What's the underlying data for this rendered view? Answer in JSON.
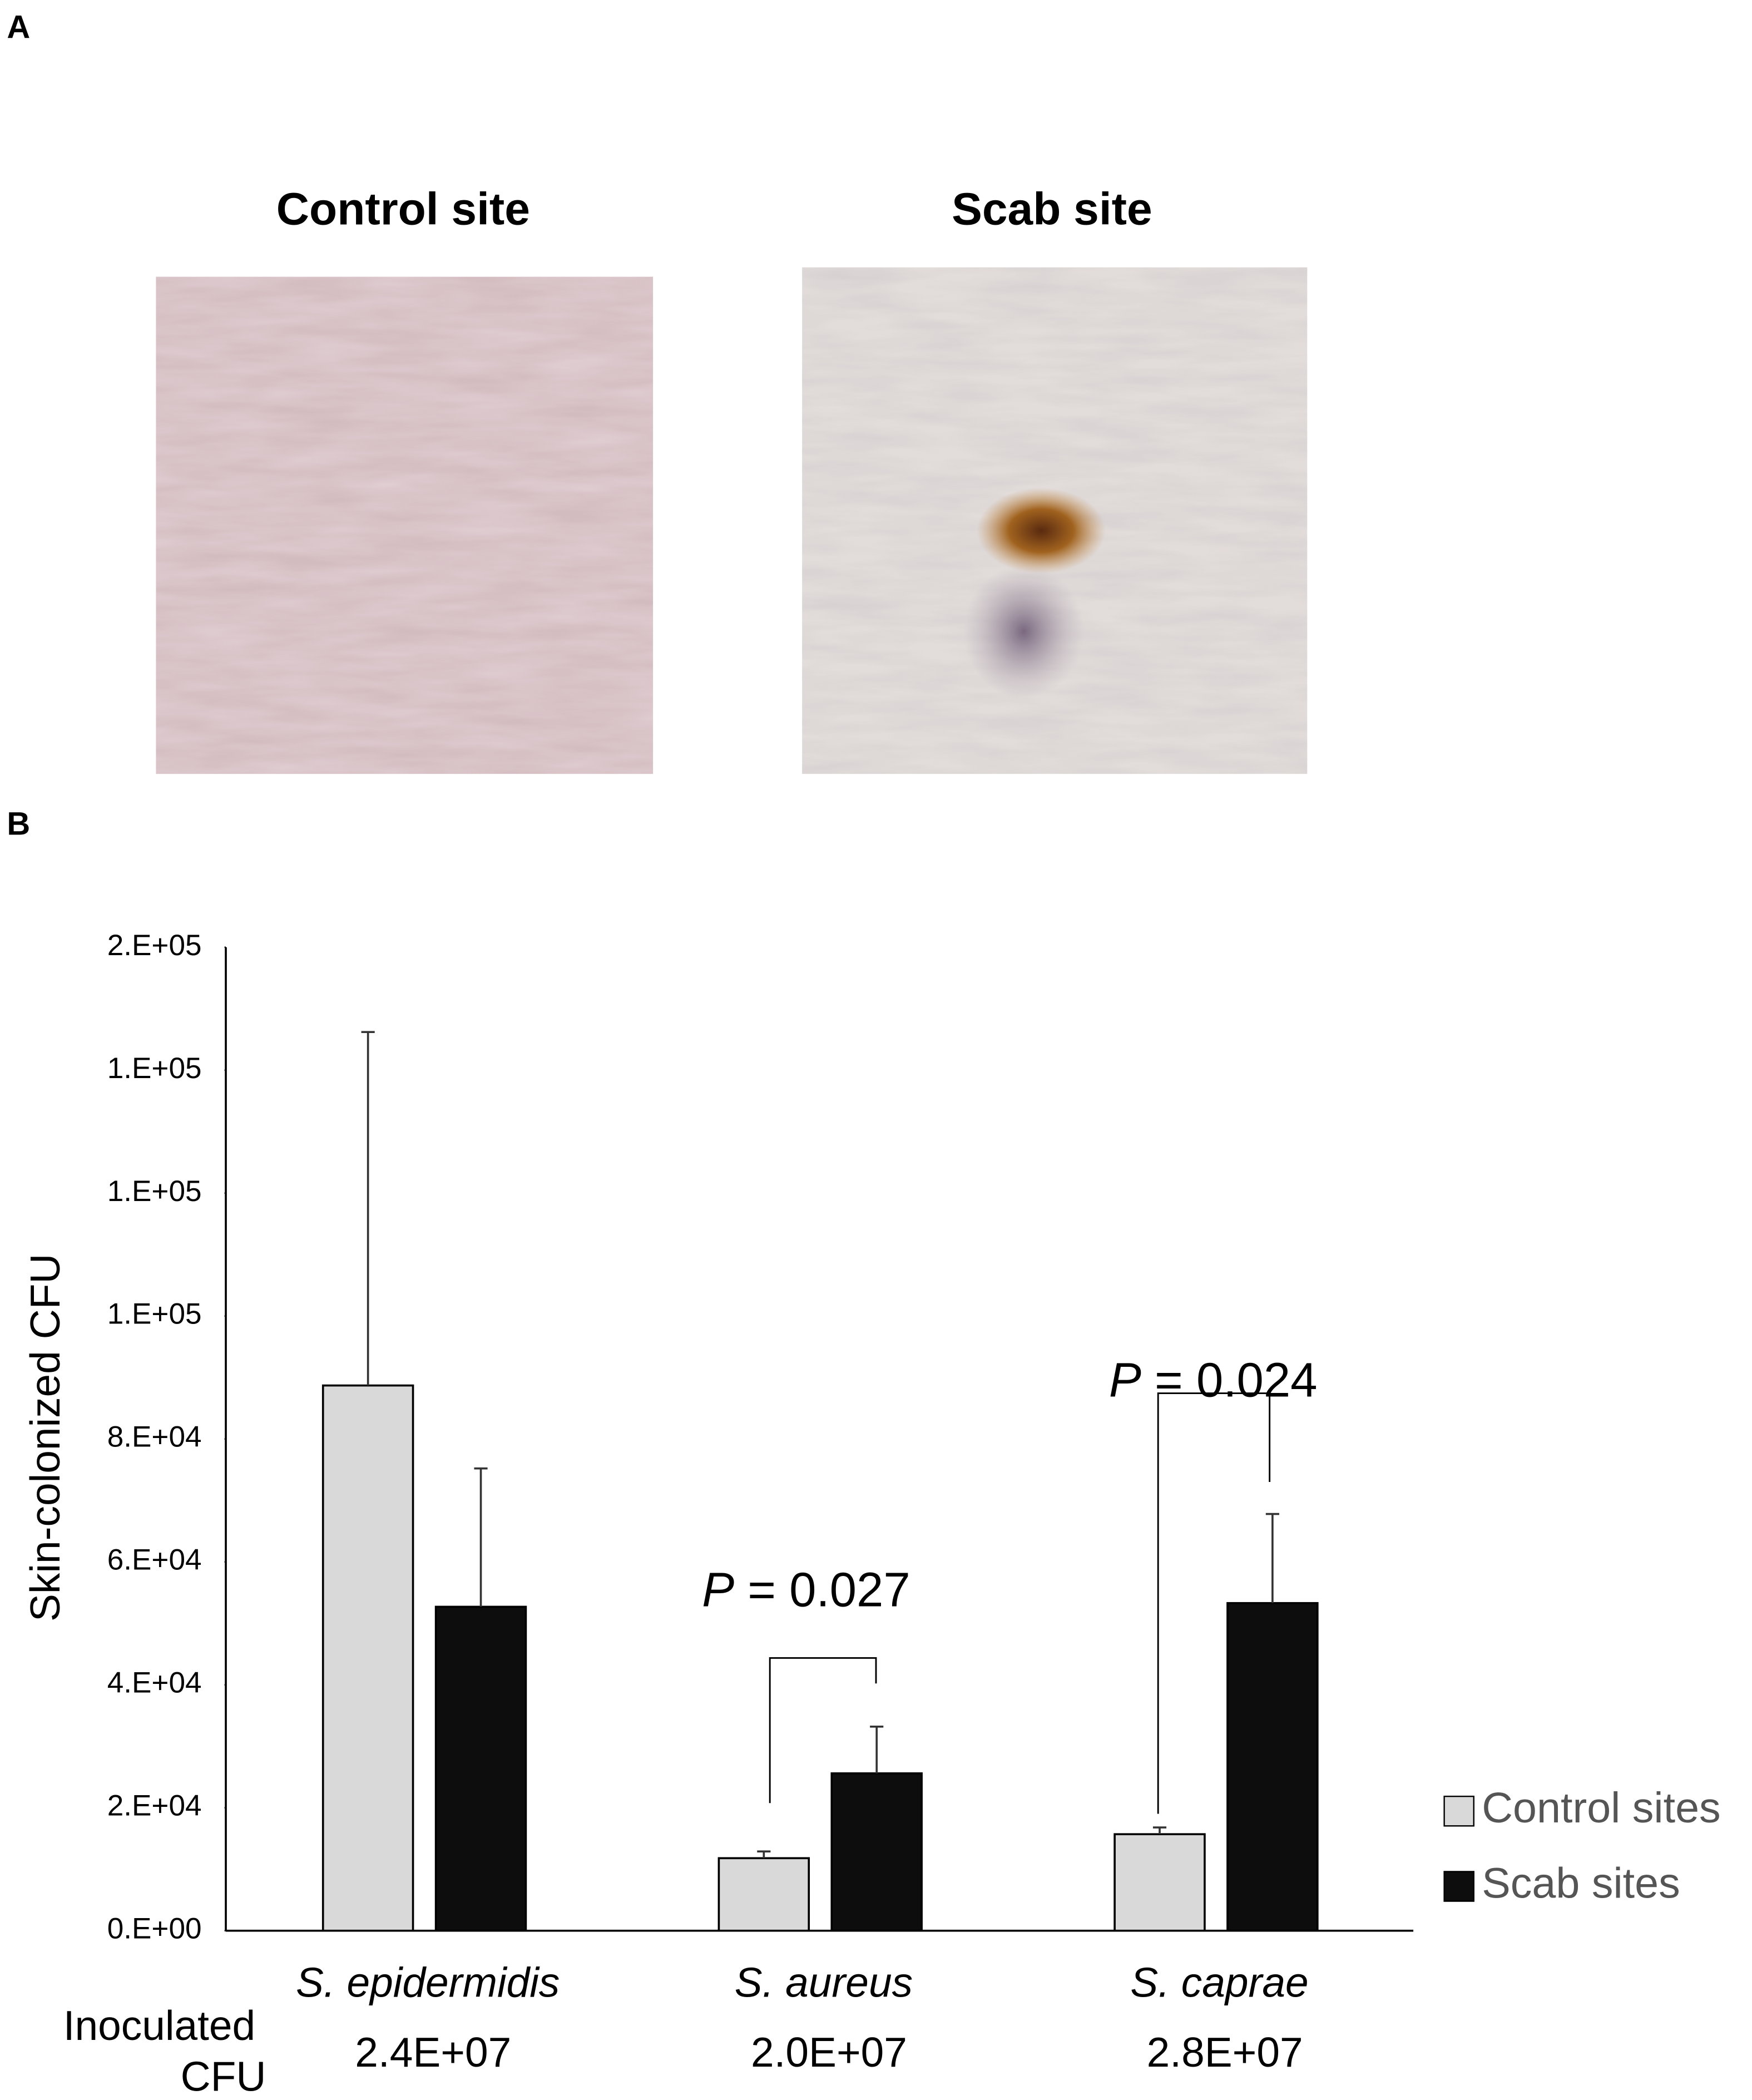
{
  "panel_a": {
    "label": "A",
    "images": [
      {
        "title": "Control site"
      },
      {
        "title": "Scab site"
      }
    ]
  },
  "panel_b": {
    "label": "B"
  },
  "chart_data": {
    "type": "bar",
    "y_label": "Skin-colonized CFU",
    "categories": [
      "S. epidermidis",
      "S. aureus",
      "S. caprae"
    ],
    "series": [
      {
        "name": "Control sites",
        "color": "#d9d9d9",
        "values": [
          88700,
          11800,
          15700
        ],
        "errors": [
          57500,
          1100,
          1100
        ]
      },
      {
        "name": "Scab sites",
        "color": "#0d0d0d",
        "values": [
          52700,
          25600,
          53300
        ],
        "errors": [
          22500,
          7600,
          14500
        ]
      }
    ],
    "ylim": [
      0,
      160000
    ],
    "yticks": [
      {
        "value": 0,
        "label": "0.E+00"
      },
      {
        "value": 20000,
        "label": "2.E+04"
      },
      {
        "value": 40000,
        "label": "4.E+04"
      },
      {
        "value": 60000,
        "label": "6.E+04"
      },
      {
        "value": 80000,
        "label": "8.E+04"
      },
      {
        "value": 100000,
        "label": "1.E+05"
      },
      {
        "value": 120000,
        "label": "1.E+05"
      },
      {
        "value": 140000,
        "label": "1.E+05"
      },
      {
        "value": 160000,
        "label": "2.E+05"
      }
    ],
    "annotations": [
      {
        "italic": "P",
        "text": " = 0.027"
      },
      {
        "italic": "P",
        "text": " = 0.024"
      }
    ],
    "inoculated_label": [
      "Inoculated",
      "CFU"
    ],
    "inoculated_cfu": [
      {
        "value": 24000000,
        "label": "2.4E+07"
      },
      {
        "value": 20000000,
        "label": "2.0E+07"
      },
      {
        "value": 28000000,
        "label": "2.8E+07"
      }
    ],
    "legend": "bottom-right"
  }
}
